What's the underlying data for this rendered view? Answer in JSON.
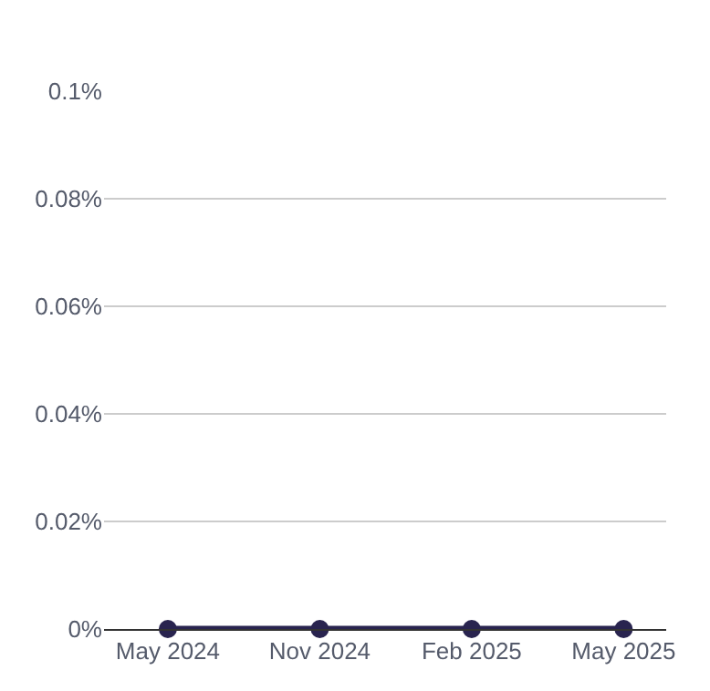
{
  "chart_data": {
    "type": "line",
    "categories": [
      "May 2024",
      "Nov 2024",
      "Feb 2025",
      "May 2025"
    ],
    "series": [
      {
        "color": "#29244f",
        "values": [
          0,
          0,
          0,
          0
        ]
      }
    ],
    "ylim": [
      0,
      0.1
    ],
    "yticks": [
      {
        "value": 0,
        "label": "0%"
      },
      {
        "value": 0.02,
        "label": "0.02%"
      },
      {
        "value": 0.04,
        "label": "0.04%"
      },
      {
        "value": 0.06,
        "label": "0.06%"
      },
      {
        "value": 0.08,
        "label": "0.08%"
      },
      {
        "value": 0.1,
        "label": "0.1%"
      }
    ],
    "grid": "y",
    "marker": "circle",
    "line_style": "solid",
    "legend": false
  }
}
